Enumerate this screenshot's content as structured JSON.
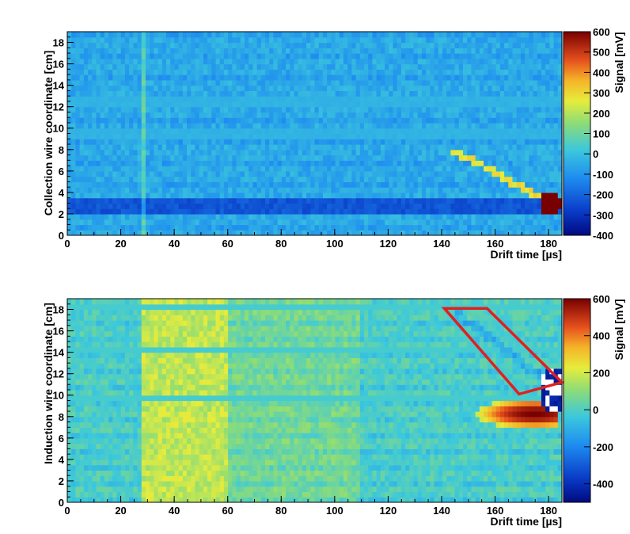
{
  "chart_data": [
    {
      "type": "heatmap",
      "xlabel": "Drift time [µs]",
      "ylabel": "Collection wire coordinate [cm]",
      "zlabel": "Signal [mV]",
      "xlim": [
        0,
        185
      ],
      "ylim": [
        0,
        19
      ],
      "zlim": [
        -400,
        600
      ],
      "x_ticks": [
        0,
        20,
        40,
        60,
        80,
        100,
        120,
        140,
        160,
        180
      ],
      "y_ticks": [
        0,
        2,
        4,
        6,
        8,
        10,
        12,
        14,
        16,
        18
      ],
      "z_ticks": [
        -400,
        -300,
        -200,
        -100,
        0,
        100,
        200,
        300,
        400,
        500,
        600
      ],
      "colormap": "rainbow (dark blue to dark red)",
      "grid": false,
      "features": {
        "baseline_mV": -50,
        "low_band_y": [
          1.8,
          3.6
        ],
        "low_band_mV": -230,
        "onset_x": 27,
        "track_points_xy": [
          [
            145,
            7.7
          ],
          [
            155,
            6.6
          ],
          [
            165,
            5.1
          ],
          [
            175,
            3.8
          ]
        ],
        "track_mV": 280,
        "blob_center_xy": [
          181,
          3.0
        ],
        "blob_mV": 600
      }
    },
    {
      "type": "heatmap",
      "xlabel": "Drift time [µs]",
      "ylabel": "Induction wire coordinate [cm]",
      "zlabel": "Signal [mV]",
      "xlim": [
        0,
        185
      ],
      "ylim": [
        0,
        19
      ],
      "zlim": [
        -500,
        600
      ],
      "x_ticks": [
        0,
        20,
        40,
        60,
        80,
        100,
        120,
        140,
        160,
        180
      ],
      "y_ticks": [
        0,
        2,
        4,
        6,
        8,
        10,
        12,
        14,
        16,
        18
      ],
      "z_ticks": [
        -400,
        -200,
        0,
        200,
        400,
        600
      ],
      "colormap": "rainbow (dark blue to dark red)",
      "grid": false,
      "features": {
        "baseline_mV": 0,
        "onset_x": 28,
        "early_mV": 150,
        "positive_lobe_center_xy": [
          175,
          8.3
        ],
        "positive_lobe_mV": 600,
        "negative_lobe_center_xy": [
          182,
          10.5
        ],
        "negative_lobe_mV": -450,
        "annotation": {
          "type": "parallelogram",
          "color": "#e02020",
          "vertices_xy": [
            [
              141,
              18.1
            ],
            [
              157,
              18.1
            ],
            [
              185,
              11.2
            ],
            [
              169,
              10.1
            ]
          ]
        }
      }
    }
  ]
}
